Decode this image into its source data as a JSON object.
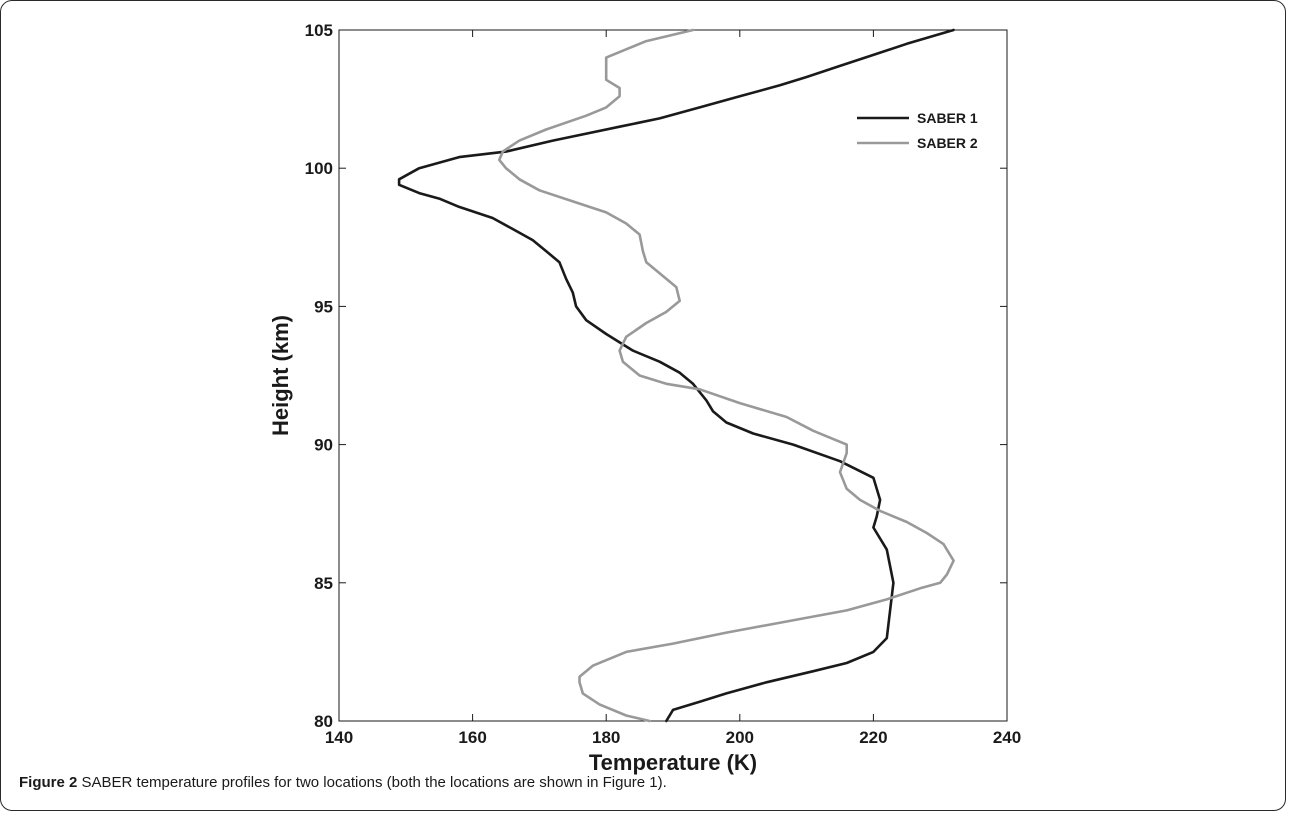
{
  "caption": {
    "label": "Figure 2",
    "text": "SABER temperature profiles for two locations (both the locations are shown in Figure 1)."
  },
  "chart_data": {
    "type": "line",
    "xlabel": "Temperature (K)",
    "ylabel": "Height (km)",
    "xlim": [
      140,
      240
    ],
    "ylim": [
      80,
      105
    ],
    "xticks": [
      140,
      160,
      180,
      200,
      220,
      240
    ],
    "yticks": [
      80,
      85,
      90,
      95,
      100,
      105
    ],
    "grid": false,
    "legend_position": "top-right",
    "series": [
      {
        "name": "SABER 1",
        "color": "#1a1a1a",
        "points": [
          [
            189,
            80.0
          ],
          [
            190,
            80.4
          ],
          [
            194,
            80.7
          ],
          [
            198,
            81.0
          ],
          [
            204,
            81.4
          ],
          [
            211,
            81.8
          ],
          [
            216,
            82.1
          ],
          [
            220,
            82.5
          ],
          [
            222,
            83.0
          ],
          [
            222.5,
            84.0
          ],
          [
            223,
            85.0
          ],
          [
            222,
            86.2
          ],
          [
            220,
            87.0
          ],
          [
            220.5,
            87.4
          ],
          [
            221,
            88.0
          ],
          [
            220,
            88.8
          ],
          [
            215,
            89.4
          ],
          [
            208,
            90.0
          ],
          [
            202,
            90.4
          ],
          [
            198,
            90.8
          ],
          [
            196,
            91.2
          ],
          [
            195,
            91.6
          ],
          [
            193,
            92.2
          ],
          [
            191,
            92.6
          ],
          [
            188,
            93.0
          ],
          [
            184,
            93.4
          ],
          [
            180,
            94.0
          ],
          [
            177,
            94.5
          ],
          [
            175.5,
            95.0
          ],
          [
            175,
            95.5
          ],
          [
            174,
            96.0
          ],
          [
            173,
            96.6
          ],
          [
            171,
            97.0
          ],
          [
            169,
            97.4
          ],
          [
            166,
            97.8
          ],
          [
            163,
            98.2
          ],
          [
            158,
            98.6
          ],
          [
            155,
            98.9
          ],
          [
            152,
            99.1
          ],
          [
            149,
            99.4
          ],
          [
            149,
            99.6
          ],
          [
            152,
            100.0
          ],
          [
            158,
            100.4
          ],
          [
            165,
            100.6
          ],
          [
            172,
            101.0
          ],
          [
            182,
            101.5
          ],
          [
            188,
            101.8
          ],
          [
            194,
            102.2
          ],
          [
            200,
            102.6
          ],
          [
            206,
            103.0
          ],
          [
            210,
            103.3
          ],
          [
            215,
            103.7
          ],
          [
            220,
            104.1
          ],
          [
            225,
            104.5
          ],
          [
            232,
            105.0
          ]
        ]
      },
      {
        "name": "SABER 2",
        "color": "#999999",
        "points": [
          [
            186.5,
            80.0
          ],
          [
            183,
            80.2
          ],
          [
            179,
            80.6
          ],
          [
            176.5,
            81.0
          ],
          [
            176,
            81.4
          ],
          [
            176,
            81.6
          ],
          [
            178,
            82.0
          ],
          [
            183,
            82.5
          ],
          [
            190,
            82.8
          ],
          [
            198,
            83.2
          ],
          [
            207,
            83.6
          ],
          [
            216,
            84.0
          ],
          [
            222,
            84.4
          ],
          [
            227,
            84.8
          ],
          [
            230,
            85.0
          ],
          [
            231,
            85.3
          ],
          [
            232,
            85.8
          ],
          [
            230.5,
            86.4
          ],
          [
            228,
            86.8
          ],
          [
            225,
            87.2
          ],
          [
            221,
            87.6
          ],
          [
            218,
            88.0
          ],
          [
            216,
            88.4
          ],
          [
            215,
            89.0
          ],
          [
            216,
            89.7
          ],
          [
            216,
            90.0
          ],
          [
            214,
            90.2
          ],
          [
            211,
            90.5
          ],
          [
            207,
            91.0
          ],
          [
            200,
            91.5
          ],
          [
            194,
            92.0
          ],
          [
            189,
            92.2
          ],
          [
            185,
            92.5
          ],
          [
            182.5,
            93.0
          ],
          [
            182,
            93.4
          ],
          [
            183,
            93.9
          ],
          [
            186,
            94.4
          ],
          [
            189,
            94.8
          ],
          [
            191,
            95.2
          ],
          [
            190.5,
            95.7
          ],
          [
            188,
            96.2
          ],
          [
            186,
            96.6
          ],
          [
            185.5,
            97.0
          ],
          [
            185,
            97.6
          ],
          [
            183,
            98.0
          ],
          [
            180,
            98.4
          ],
          [
            175,
            98.8
          ],
          [
            170,
            99.2
          ],
          [
            167,
            99.6
          ],
          [
            165,
            100.0
          ],
          [
            164,
            100.3
          ],
          [
            164.5,
            100.6
          ],
          [
            167,
            101.0
          ],
          [
            171,
            101.4
          ],
          [
            177,
            101.9
          ],
          [
            180,
            102.2
          ],
          [
            182,
            102.6
          ],
          [
            182,
            102.9
          ],
          [
            180,
            103.2
          ],
          [
            180,
            103.6
          ],
          [
            180,
            104.0
          ],
          [
            183,
            104.3
          ],
          [
            186,
            104.6
          ],
          [
            193,
            105.0
          ]
        ]
      }
    ]
  }
}
